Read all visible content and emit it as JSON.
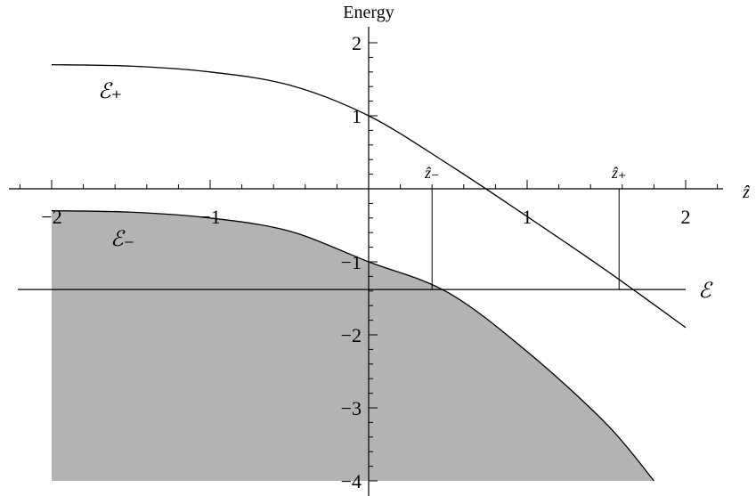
{
  "chart_data": {
    "type": "line",
    "title": "",
    "xlabel": "ẑ",
    "ylabel": "Energy",
    "xlim": [
      -2.2,
      2.25
    ],
    "ylim": [
      -4,
      2.2
    ],
    "x_ticks": [
      -2,
      -1,
      1,
      2
    ],
    "x_tick_labels": [
      "−2",
      "−1",
      "1",
      "2"
    ],
    "y_ticks": [
      -4,
      -3,
      -2,
      -1,
      1,
      2
    ],
    "y_tick_labels": [
      "−4",
      "−3",
      "−2",
      "−1",
      "1",
      "2"
    ],
    "grid": false,
    "series": [
      {
        "name": "ℰ₊",
        "color": "#000000",
        "x": [
          -2.0,
          -1.5,
          -1.0,
          -0.5,
          0.0,
          0.5,
          1.0,
          1.5,
          2.0
        ],
        "y": [
          1.7,
          1.68,
          1.6,
          1.42,
          1.0,
          0.34,
          -0.38,
          -1.12,
          -1.9
        ]
      },
      {
        "name": "ℰ₋",
        "color": "#000000",
        "fill_below": "#b3b3b3",
        "x": [
          -2.0,
          -1.5,
          -1.0,
          -0.5,
          0.0,
          0.5,
          1.0,
          1.5,
          1.8
        ],
        "y": [
          -0.3,
          -0.32,
          -0.4,
          -0.58,
          -1.0,
          -1.42,
          -2.23,
          -3.22,
          -4.0
        ]
      }
    ],
    "horizontal_line": {
      "label": "ℰ",
      "y": -1.38,
      "x_from": -2.2,
      "x_to": 2.0
    },
    "markers": [
      {
        "label": "ẑ₋",
        "x": 0.4,
        "y": -1.38
      },
      {
        "label": "ẑ₊",
        "x": 1.58,
        "y": -1.38
      }
    ]
  }
}
